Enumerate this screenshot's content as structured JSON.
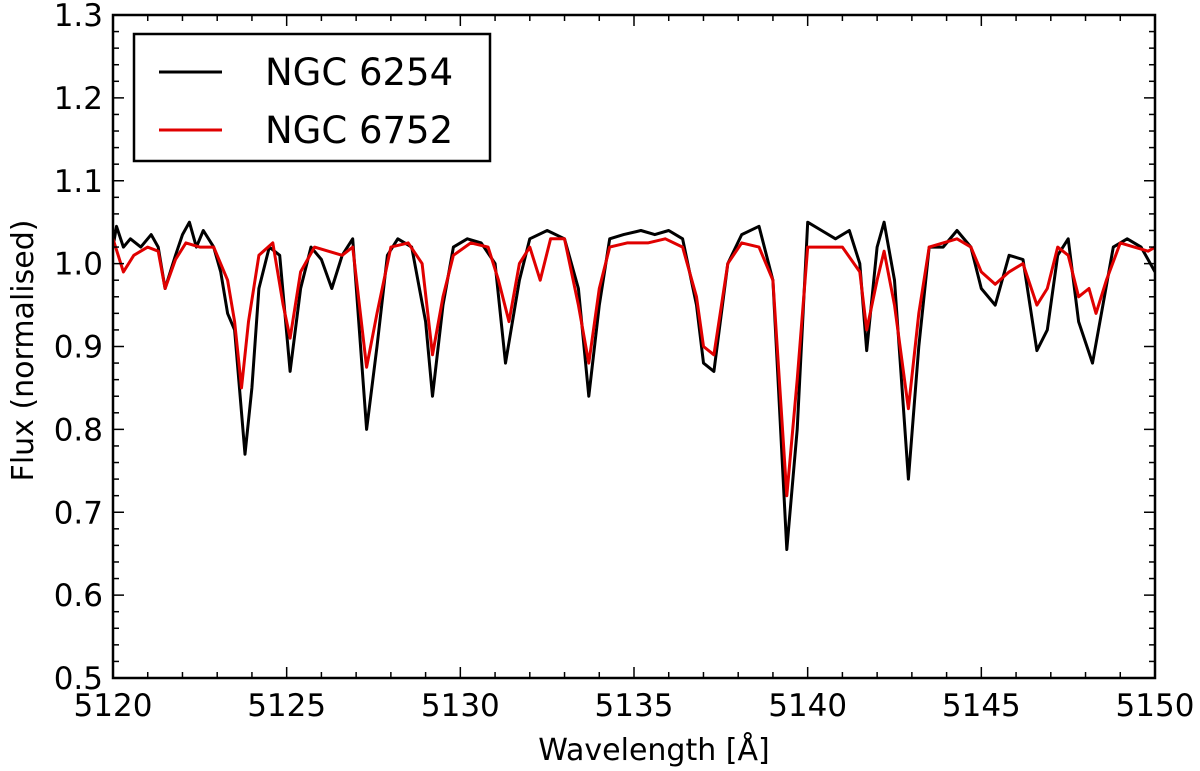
{
  "chart_data": {
    "type": "line",
    "xlabel": "Wavelength [Å]",
    "ylabel": "Flux (normalised)",
    "xlim": [
      5120,
      5150
    ],
    "ylim": [
      0.5,
      1.3
    ],
    "xticks": [
      "5120",
      "5125",
      "5130",
      "5135",
      "5140",
      "5145",
      "5150"
    ],
    "yticks": [
      "0.5",
      "0.6",
      "0.7",
      "0.8",
      "0.9",
      "1.0",
      "1.1",
      "1.2",
      "1.3"
    ],
    "grid": false,
    "legend_position": "top-left",
    "series": [
      {
        "name": "NGC 6254",
        "color": "#000000",
        "points": [
          [
            5120.0,
            1.02
          ],
          [
            5120.1,
            1.045
          ],
          [
            5120.3,
            1.02
          ],
          [
            5120.5,
            1.03
          ],
          [
            5120.8,
            1.02
          ],
          [
            5121.1,
            1.035
          ],
          [
            5121.3,
            1.02
          ],
          [
            5121.5,
            0.97
          ],
          [
            5121.8,
            1.01
          ],
          [
            5122.0,
            1.035
          ],
          [
            5122.2,
            1.05
          ],
          [
            5122.4,
            1.02
          ],
          [
            5122.6,
            1.04
          ],
          [
            5122.9,
            1.02
          ],
          [
            5123.1,
            0.99
          ],
          [
            5123.3,
            0.94
          ],
          [
            5123.5,
            0.92
          ],
          [
            5123.8,
            0.77
          ],
          [
            5124.0,
            0.85
          ],
          [
            5124.2,
            0.97
          ],
          [
            5124.5,
            1.02
          ],
          [
            5124.8,
            1.01
          ],
          [
            5125.1,
            0.87
          ],
          [
            5125.4,
            0.97
          ],
          [
            5125.7,
            1.02
          ],
          [
            5126.0,
            1.005
          ],
          [
            5126.3,
            0.97
          ],
          [
            5126.6,
            1.01
          ],
          [
            5126.9,
            1.03
          ],
          [
            5127.3,
            0.8
          ],
          [
            5127.6,
            0.9
          ],
          [
            5127.9,
            1.01
          ],
          [
            5128.2,
            1.03
          ],
          [
            5128.6,
            1.02
          ],
          [
            5129.0,
            0.93
          ],
          [
            5129.2,
            0.84
          ],
          [
            5129.5,
            0.95
          ],
          [
            5129.8,
            1.02
          ],
          [
            5130.2,
            1.03
          ],
          [
            5130.6,
            1.025
          ],
          [
            5131.0,
            1.0
          ],
          [
            5131.3,
            0.88
          ],
          [
            5131.7,
            0.98
          ],
          [
            5132.0,
            1.03
          ],
          [
            5132.5,
            1.04
          ],
          [
            5133.0,
            1.03
          ],
          [
            5133.4,
            0.97
          ],
          [
            5133.7,
            0.84
          ],
          [
            5134.0,
            0.95
          ],
          [
            5134.3,
            1.03
          ],
          [
            5134.7,
            1.035
          ],
          [
            5135.2,
            1.04
          ],
          [
            5135.6,
            1.035
          ],
          [
            5136.0,
            1.04
          ],
          [
            5136.4,
            1.03
          ],
          [
            5136.8,
            0.95
          ],
          [
            5137.0,
            0.88
          ],
          [
            5137.3,
            0.87
          ],
          [
            5137.7,
            1.0
          ],
          [
            5138.1,
            1.035
          ],
          [
            5138.6,
            1.045
          ],
          [
            5139.0,
            0.98
          ],
          [
            5139.4,
            0.655
          ],
          [
            5139.7,
            0.8
          ],
          [
            5140.0,
            1.05
          ],
          [
            5140.4,
            1.04
          ],
          [
            5140.8,
            1.03
          ],
          [
            5141.2,
            1.04
          ],
          [
            5141.5,
            1.0
          ],
          [
            5141.7,
            0.895
          ],
          [
            5142.0,
            1.02
          ],
          [
            5142.2,
            1.05
          ],
          [
            5142.5,
            0.98
          ],
          [
            5142.9,
            0.74
          ],
          [
            5143.2,
            0.9
          ],
          [
            5143.5,
            1.02
          ],
          [
            5143.9,
            1.02
          ],
          [
            5144.3,
            1.04
          ],
          [
            5144.7,
            1.02
          ],
          [
            5145.0,
            0.97
          ],
          [
            5145.4,
            0.95
          ],
          [
            5145.8,
            1.01
          ],
          [
            5146.2,
            1.005
          ],
          [
            5146.6,
            0.895
          ],
          [
            5146.9,
            0.92
          ],
          [
            5147.2,
            1.01
          ],
          [
            5147.5,
            1.03
          ],
          [
            5147.8,
            0.93
          ],
          [
            5148.2,
            0.88
          ],
          [
            5148.5,
            0.95
          ],
          [
            5148.8,
            1.02
          ],
          [
            5149.2,
            1.03
          ],
          [
            5149.6,
            1.02
          ],
          [
            5150.0,
            0.99
          ]
        ]
      },
      {
        "name": "NGC 6752",
        "color": "#e00000",
        "points": [
          [
            5120.0,
            1.03
          ],
          [
            5120.3,
            0.99
          ],
          [
            5120.6,
            1.01
          ],
          [
            5121.0,
            1.02
          ],
          [
            5121.3,
            1.015
          ],
          [
            5121.5,
            0.97
          ],
          [
            5121.8,
            1.005
          ],
          [
            5122.1,
            1.025
          ],
          [
            5122.5,
            1.02
          ],
          [
            5122.9,
            1.02
          ],
          [
            5123.3,
            0.98
          ],
          [
            5123.5,
            0.93
          ],
          [
            5123.7,
            0.85
          ],
          [
            5123.9,
            0.93
          ],
          [
            5124.2,
            1.01
          ],
          [
            5124.6,
            1.025
          ],
          [
            5124.9,
            0.95
          ],
          [
            5125.1,
            0.91
          ],
          [
            5125.4,
            0.99
          ],
          [
            5125.8,
            1.02
          ],
          [
            5126.2,
            1.015
          ],
          [
            5126.6,
            1.01
          ],
          [
            5126.9,
            1.02
          ],
          [
            5127.3,
            0.875
          ],
          [
            5127.6,
            0.94
          ],
          [
            5128.0,
            1.02
          ],
          [
            5128.5,
            1.025
          ],
          [
            5128.9,
            1.0
          ],
          [
            5129.2,
            0.89
          ],
          [
            5129.5,
            0.96
          ],
          [
            5129.8,
            1.01
          ],
          [
            5130.3,
            1.025
          ],
          [
            5130.8,
            1.02
          ],
          [
            5131.1,
            0.98
          ],
          [
            5131.4,
            0.93
          ],
          [
            5131.7,
            1.0
          ],
          [
            5132.0,
            1.02
          ],
          [
            5132.3,
            0.98
          ],
          [
            5132.6,
            1.03
          ],
          [
            5133.0,
            1.03
          ],
          [
            5133.4,
            0.95
          ],
          [
            5133.7,
            0.88
          ],
          [
            5134.0,
            0.97
          ],
          [
            5134.3,
            1.02
          ],
          [
            5134.8,
            1.025
          ],
          [
            5135.4,
            1.025
          ],
          [
            5135.9,
            1.03
          ],
          [
            5136.4,
            1.02
          ],
          [
            5136.8,
            0.96
          ],
          [
            5137.0,
            0.9
          ],
          [
            5137.3,
            0.89
          ],
          [
            5137.7,
            1.0
          ],
          [
            5138.1,
            1.025
          ],
          [
            5138.6,
            1.02
          ],
          [
            5139.0,
            0.98
          ],
          [
            5139.4,
            0.72
          ],
          [
            5139.7,
            0.86
          ],
          [
            5140.0,
            1.02
          ],
          [
            5140.5,
            1.02
          ],
          [
            5141.0,
            1.02
          ],
          [
            5141.5,
            0.99
          ],
          [
            5141.7,
            0.92
          ],
          [
            5142.0,
            0.98
          ],
          [
            5142.2,
            1.015
          ],
          [
            5142.5,
            0.95
          ],
          [
            5142.9,
            0.825
          ],
          [
            5143.2,
            0.94
          ],
          [
            5143.5,
            1.02
          ],
          [
            5143.9,
            1.025
          ],
          [
            5144.3,
            1.03
          ],
          [
            5144.7,
            1.02
          ],
          [
            5145.0,
            0.99
          ],
          [
            5145.4,
            0.975
          ],
          [
            5145.8,
            0.99
          ],
          [
            5146.2,
            1.0
          ],
          [
            5146.6,
            0.95
          ],
          [
            5146.9,
            0.97
          ],
          [
            5147.2,
            1.02
          ],
          [
            5147.5,
            1.01
          ],
          [
            5147.8,
            0.96
          ],
          [
            5148.1,
            0.97
          ],
          [
            5148.3,
            0.94
          ],
          [
            5148.6,
            0.98
          ],
          [
            5149.0,
            1.025
          ],
          [
            5149.4,
            1.02
          ],
          [
            5149.8,
            1.015
          ],
          [
            5150.0,
            1.02
          ]
        ]
      }
    ]
  }
}
